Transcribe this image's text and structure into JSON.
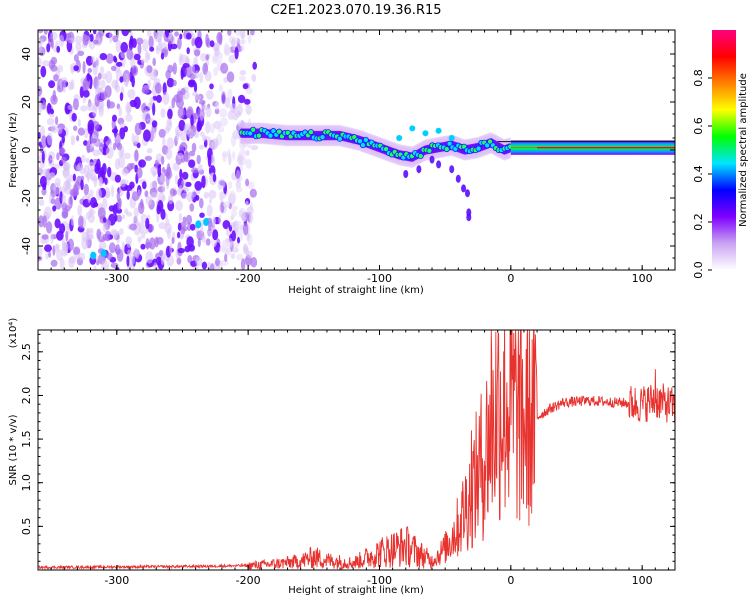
{
  "title": "C2E1.2023.070.19.36.R15",
  "chart_data": [
    {
      "type": "heatmap",
      "xlabel": "Height of straight line (km)",
      "ylabel": "Frequency (Hz)",
      "xlim": [
        -360,
        125
      ],
      "ylim": [
        -50,
        50
      ],
      "x_ticks": [
        -300,
        -200,
        -100,
        0,
        100
      ],
      "y_ticks": [
        -40,
        -20,
        0,
        20,
        40
      ],
      "colorbar": {
        "label": "Normalized spectral amplitude",
        "range": [
          0,
          1
        ],
        "ticks": [
          "0.0",
          "0.2",
          "0.4",
          "0.6",
          "0.8"
        ],
        "colors": [
          "#ffffff",
          "#c9a3f2",
          "#7f00ff",
          "#0000ff",
          "#00e5ff",
          "#00ff00",
          "#ffff00",
          "#ff8000",
          "#ff0000",
          "#ff0080"
        ]
      },
      "ridge": {
        "x": [
          -205,
          -190,
          -170,
          -150,
          -130,
          -115,
          -100,
          -85,
          -75,
          -65,
          -55,
          -45,
          -35,
          -25,
          -15,
          -5,
          0,
          20,
          60,
          100,
          125
        ],
        "y": [
          7,
          7,
          6,
          6,
          6,
          4,
          1,
          -2,
          -3,
          0,
          1,
          2,
          0,
          1,
          3,
          0,
          1,
          1,
          1,
          1,
          1
        ]
      },
      "dispersed_region_x": [
        -360,
        -195
      ]
    },
    {
      "type": "line",
      "xlabel": "Height of straight line (km)",
      "ylabel": "SNR (10 * v/v)",
      "y_multiplier": "(x10⁴)",
      "xlim": [
        -360,
        125
      ],
      "ylim": [
        0,
        27500
      ],
      "x_ticks": [
        -300,
        -200,
        -100,
        0,
        100
      ],
      "y_ticks": [
        "0.5",
        "1.0",
        "1.5",
        "2.0",
        "2.5"
      ],
      "y_tick_values": [
        5000,
        10000,
        15000,
        20000,
        25000
      ],
      "color": "#e8322e",
      "series": {
        "x": [
          -360,
          -250,
          -200,
          -180,
          -160,
          -150,
          -140,
          -120,
          -100,
          -80,
          -60,
          -50,
          -40,
          -30,
          -20,
          -15,
          -10,
          0,
          10,
          20,
          30,
          40,
          60,
          80,
          100,
          110,
          125
        ],
        "y": [
          300,
          400,
          500,
          700,
          1000,
          1500,
          1100,
          800,
          2000,
          2800,
          1000,
          2500,
          5000,
          9000,
          13000,
          16000,
          19000,
          19000,
          16500,
          17500,
          18500,
          19200,
          19400,
          19200,
          19000,
          19500,
          18700
        ]
      },
      "peaks": [
        {
          "x": -15,
          "y": 27500
        },
        {
          "x": -30,
          "y": 16000
        },
        {
          "x": 10,
          "y": 18500
        },
        {
          "x": 110,
          "y": 23000
        }
      ]
    }
  ]
}
